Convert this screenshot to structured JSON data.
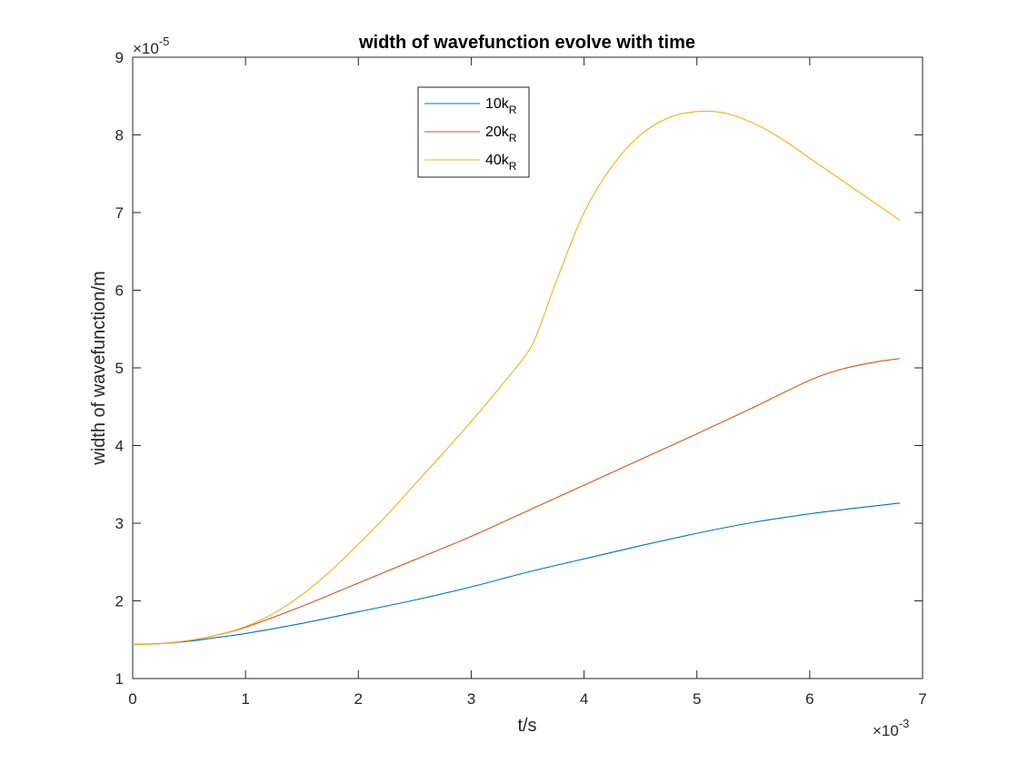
{
  "chart_data": {
    "type": "line",
    "title": "width of wavefunction evolve with time",
    "xlabel": "t/s",
    "ylabel": "width of wavefunction/m",
    "x_multiplier": {
      "base": "×10",
      "exponent": "-3"
    },
    "y_multiplier": {
      "base": "×10",
      "exponent": "-5"
    },
    "xlim": [
      0,
      7
    ],
    "ylim": [
      1,
      9
    ],
    "x_ticks": [
      0,
      1,
      2,
      3,
      4,
      5,
      6,
      7
    ],
    "y_ticks": [
      1,
      2,
      3,
      4,
      5,
      6,
      7,
      8,
      9
    ],
    "x_tick_labels": [
      "0",
      "1",
      "2",
      "3",
      "4",
      "5",
      "6",
      "7"
    ],
    "y_tick_labels": [
      "1",
      "2",
      "3",
      "4",
      "5",
      "6",
      "7",
      "8",
      "9"
    ],
    "grid": false,
    "legend_position": "top-center",
    "series": [
      {
        "name": "10k",
        "subscript": "R",
        "color": "#0072BD",
        "x": [
          0,
          0.25,
          0.5,
          0.75,
          1.0,
          1.5,
          2.0,
          2.5,
          3.0,
          3.5,
          4.0,
          4.5,
          5.0,
          5.5,
          6.0,
          6.5,
          6.8
        ],
        "y": [
          1.44,
          1.45,
          1.48,
          1.53,
          1.58,
          1.71,
          1.86,
          2.01,
          2.18,
          2.37,
          2.54,
          2.71,
          2.87,
          3.01,
          3.12,
          3.21,
          3.26
        ]
      },
      {
        "name": "20k",
        "subscript": "R",
        "color": "#D95319",
        "x": [
          0,
          0.25,
          0.5,
          0.75,
          1.0,
          1.5,
          2.0,
          2.5,
          3.0,
          3.5,
          4.0,
          4.5,
          5.0,
          5.5,
          6.0,
          6.3,
          6.6,
          6.8
        ],
        "y": [
          1.44,
          1.45,
          1.49,
          1.56,
          1.66,
          1.93,
          2.23,
          2.53,
          2.83,
          3.16,
          3.49,
          3.82,
          4.15,
          4.49,
          4.84,
          4.99,
          5.08,
          5.12
        ]
      },
      {
        "name": "40k",
        "subscript": "R",
        "color": "#EDB120",
        "x": [
          0,
          0.25,
          0.5,
          0.75,
          1.0,
          1.25,
          1.5,
          1.75,
          2.0,
          2.25,
          2.5,
          2.75,
          3.0,
          3.25,
          3.5,
          3.6,
          3.75,
          4.0,
          4.25,
          4.5,
          4.75,
          5.0,
          5.25,
          5.5,
          5.75,
          6.0,
          6.25,
          6.5,
          6.8
        ],
        "y": [
          1.44,
          1.45,
          1.49,
          1.56,
          1.67,
          1.84,
          2.08,
          2.38,
          2.73,
          3.1,
          3.5,
          3.9,
          4.31,
          4.74,
          5.2,
          5.5,
          6.1,
          7.0,
          7.6,
          8.0,
          8.22,
          8.3,
          8.28,
          8.15,
          7.95,
          7.7,
          7.45,
          7.2,
          6.9
        ]
      }
    ]
  }
}
